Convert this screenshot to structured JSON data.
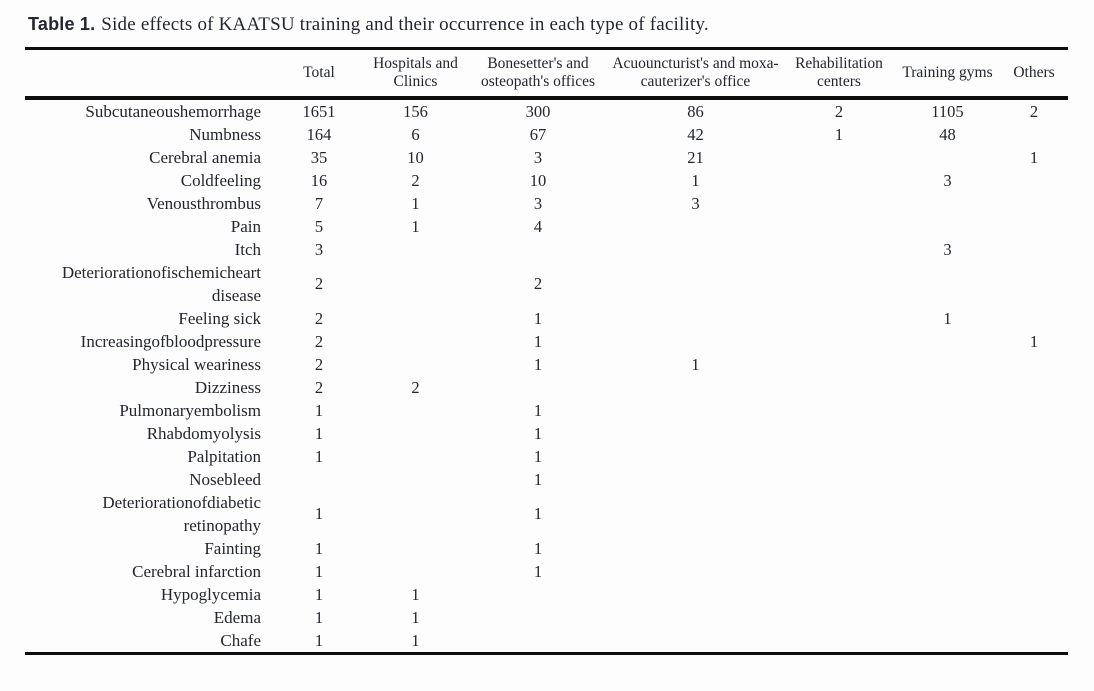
{
  "caption": {
    "label": "Table 1.",
    "text": "Side effects of KAATSU training and their occurrence in each type of facility."
  },
  "table": {
    "columns": [
      "",
      "Total",
      "Hospitals and Clinics",
      "Bonesetter's and osteopath's offices",
      "Acuouncturist's and moxa-cauterizer's office",
      "Rehabilitation centers",
      "Training gyms",
      "Others"
    ],
    "rows": [
      {
        "label": "Subcutaneoushemorrhage",
        "values": [
          "1651",
          "156",
          "300",
          "86",
          "2",
          "1105",
          "2"
        ]
      },
      {
        "label": "Numbness",
        "values": [
          "164",
          "6",
          "67",
          "42",
          "1",
          "48",
          ""
        ]
      },
      {
        "label": "Cerebral anemia",
        "values": [
          "35",
          "10",
          "3",
          "21",
          "",
          "",
          "1"
        ]
      },
      {
        "label": "Coldfeeling",
        "values": [
          "16",
          "2",
          "10",
          "1",
          "",
          "3",
          ""
        ]
      },
      {
        "label": "Venousthrombus",
        "values": [
          "7",
          "1",
          "3",
          "3",
          "",
          "",
          ""
        ]
      },
      {
        "label": "Pain",
        "values": [
          "5",
          "1",
          "4",
          "",
          "",
          "",
          ""
        ]
      },
      {
        "label": "Itch",
        "values": [
          "3",
          "",
          "",
          "",
          "",
          "3",
          ""
        ]
      },
      {
        "label": "Deteriorationofischemicheart disease",
        "values": [
          "2",
          "",
          "2",
          "",
          "",
          "",
          ""
        ]
      },
      {
        "label": "Feeling sick",
        "values": [
          "2",
          "",
          "1",
          "",
          "",
          "1",
          ""
        ]
      },
      {
        "label": "Increasingofbloodpressure",
        "values": [
          "2",
          "",
          "1",
          "",
          "",
          "",
          "1"
        ]
      },
      {
        "label": "Physical weariness",
        "values": [
          "2",
          "",
          "1",
          "1",
          "",
          "",
          ""
        ]
      },
      {
        "label": "Dizziness",
        "values": [
          "2",
          "2",
          "",
          "",
          "",
          "",
          ""
        ]
      },
      {
        "label": "Pulmonaryembolism",
        "values": [
          "1",
          "",
          "1",
          "",
          "",
          "",
          ""
        ]
      },
      {
        "label": "Rhabdomyolysis",
        "values": [
          "1",
          "",
          "1",
          "",
          "",
          "",
          ""
        ]
      },
      {
        "label": "Palpitation",
        "values": [
          "1",
          "",
          "1",
          "",
          "",
          "",
          ""
        ]
      },
      {
        "label": "Nosebleed",
        "values": [
          "",
          "",
          "1",
          "",
          "",
          "",
          ""
        ]
      },
      {
        "label": "Deteriorationofdiabetic retinopathy",
        "values": [
          "1",
          "",
          "1",
          "",
          "",
          "",
          ""
        ]
      },
      {
        "label": "Fainting",
        "values": [
          "1",
          "",
          "1",
          "",
          "",
          "",
          ""
        ]
      },
      {
        "label": "Cerebral infarction",
        "values": [
          "1",
          "",
          "1",
          "",
          "",
          "",
          ""
        ]
      },
      {
        "label": "Hypoglycemia",
        "values": [
          "1",
          "1",
          "",
          "",
          "",
          "",
          ""
        ]
      },
      {
        "label": "Edema",
        "values": [
          "1",
          "1",
          "",
          "",
          "",
          "",
          ""
        ]
      },
      {
        "label": "Chafe",
        "values": [
          "1",
          "1",
          "",
          "",
          "",
          "",
          ""
        ]
      }
    ]
  }
}
